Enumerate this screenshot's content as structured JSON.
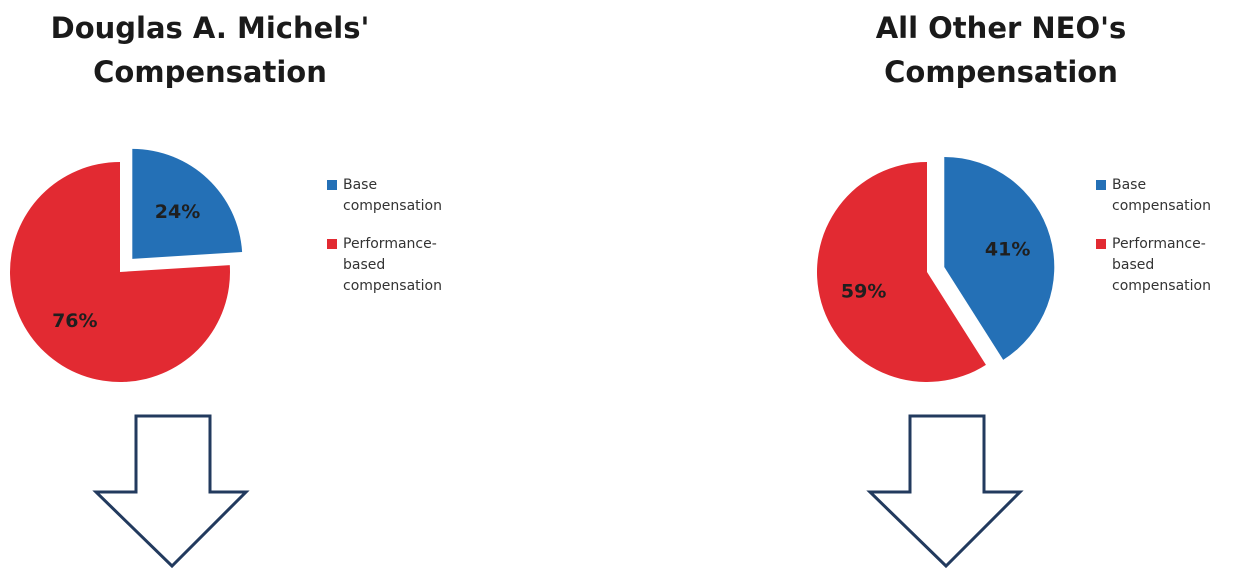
{
  "chart_data": [
    {
      "type": "pie",
      "title": "Douglas A. Michels'\nCompensation",
      "title_lines": [
        "Douglas A. Michels'",
        "Compensation"
      ],
      "slices": [
        {
          "label": "Base compensation",
          "legend_label": "Base\ncompensation",
          "value": 24,
          "data_label": "24%",
          "color": "#2470b6",
          "exploded": true
        },
        {
          "label": "Performance-based compensation",
          "legend_label": "Performance-\nbased\ncompensation",
          "value": 76,
          "data_label": "76%",
          "color": "#e22a32",
          "exploded": false
        }
      ],
      "legend_position": "right"
    },
    {
      "type": "pie",
      "title": "All Other NEO's\nCompensation",
      "title_lines": [
        "All Other NEO's",
        "Compensation"
      ],
      "slices": [
        {
          "label": "Base compensation",
          "legend_label": "Base\ncompensation",
          "value": 41,
          "data_label": "41%",
          "color": "#2470b6",
          "exploded": true
        },
        {
          "label": "Performance-based compensation",
          "legend_label": "Performance-\nbased\ncompensation",
          "value": 59,
          "data_label": "59%",
          "color": "#e22a32",
          "exploded": false
        }
      ],
      "legend_position": "right"
    }
  ],
  "colors": {
    "base": "#2470b6",
    "performance": "#e22a32",
    "arrow_outline": "#223a5e",
    "label_text": "#1f1f1f"
  },
  "icons": {
    "down_arrow": "down-arrow-icon"
  }
}
